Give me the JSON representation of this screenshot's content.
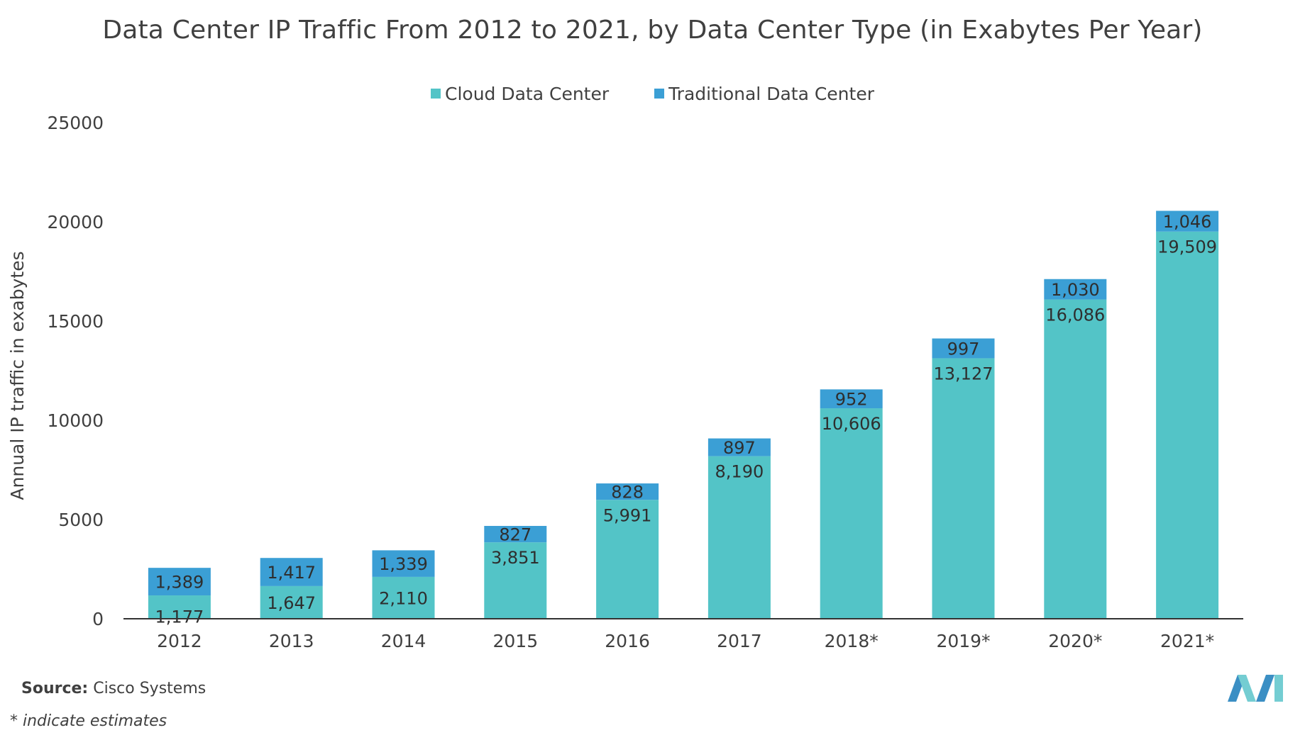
{
  "chart_data": {
    "type": "bar",
    "stacked": true,
    "title": "Data Center IP Traffic From 2012 to 2021, by Data Center Type (in Exabytes Per Year)",
    "ylabel": "Annual IP traffic in exabytes",
    "xlabel": "",
    "ylim": [
      0,
      25000
    ],
    "yticks": [
      "0",
      "5000",
      "10000",
      "15000",
      "20000",
      "25000"
    ],
    "yticks_values": [
      0,
      5000,
      10000,
      15000,
      20000,
      25000
    ],
    "legend_position": "top-center",
    "grid": false,
    "categories": [
      "2012",
      "2013",
      "2014",
      "2015",
      "2016",
      "2017",
      "2018*",
      "2019*",
      "2020*",
      "2021*"
    ],
    "series": [
      {
        "name": "Cloud Data Center",
        "color": "#53c4c7",
        "values": [
          1177,
          1647,
          2110,
          3851,
          5991,
          8190,
          10606,
          13127,
          16086,
          19509
        ],
        "labels": [
          "1,177",
          "1,647",
          "2,110",
          "3,851",
          "5,991",
          "8,190",
          "10,606",
          "13,127",
          "16,086",
          "19,509"
        ]
      },
      {
        "name": "Traditional Data Center",
        "color": "#3b9fd5",
        "values": [
          1389,
          1417,
          1339,
          827,
          828,
          897,
          952,
          997,
          1030,
          1046
        ],
        "labels": [
          "1,389",
          "1,417",
          "1,339",
          "827",
          "828",
          "897",
          "952",
          "997",
          "1,030",
          "1,046"
        ]
      }
    ]
  },
  "footer": {
    "source_label": "Source:",
    "source_value": "Cisco Systems",
    "note": "* indicate estimates"
  },
  "colors": {
    "cloud": "#53c4c7",
    "traditional": "#3b9fd5",
    "axis": "#333333",
    "logo_dark": "#3b8fc4",
    "logo_light": "#74cdd2"
  }
}
